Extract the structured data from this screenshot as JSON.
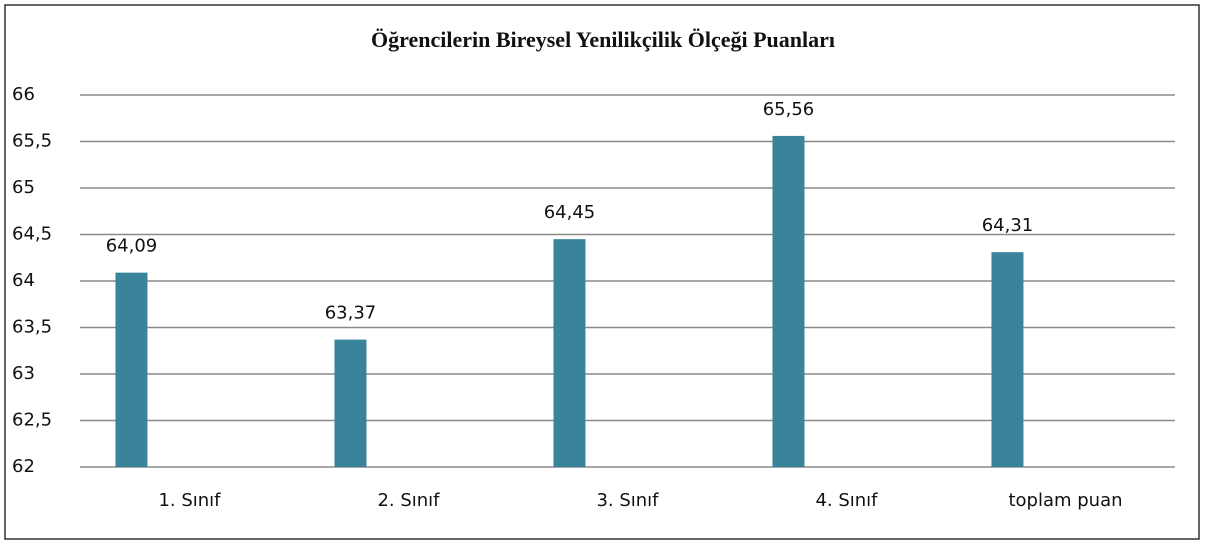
{
  "chart_data": {
    "type": "bar",
    "title": "Öğrencilerin Bireysel Yenilikçilik Ölçeği Puanları",
    "categories": [
      "1. Sınıf",
      "2. Sınıf",
      "3. Sınıf",
      "4. Sınıf",
      "toplam puan"
    ],
    "values": [
      64.09,
      63.37,
      64.45,
      65.56,
      64.31
    ],
    "value_labels": [
      "64,09",
      "63,37",
      "64,45",
      "65,56",
      "64,31"
    ],
    "color": "#3a849b",
    "ylim": [
      62,
      66
    ],
    "yticks": [
      62,
      {
        "value": 62.5,
        "label": "62,5"
      },
      63,
      {
        "value": 63.5,
        "label": "63,5"
      },
      64,
      {
        "value": 64.5,
        "label": "64,5"
      },
      65,
      {
        "value": 65.5,
        "label": "65,5"
      },
      66
    ],
    "grid": true
  }
}
